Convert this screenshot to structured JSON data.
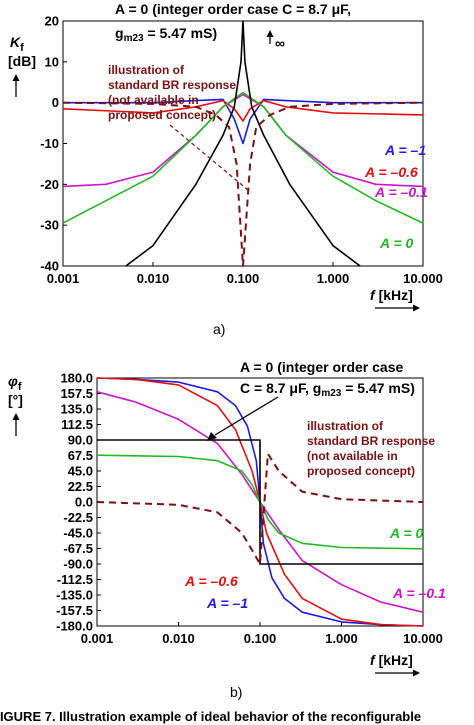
{
  "chart_data": [
    {
      "type": "line",
      "panel": "a)",
      "xscale": "log",
      "xlim": [
        0.001,
        10
      ],
      "ylim": [
        -40,
        20
      ],
      "x_ticks": [
        "0.001",
        "0.010",
        "0.100",
        "1.000",
        "10.000"
      ],
      "y_ticks": [
        "20",
        "10",
        "0",
        "-10",
        "-20",
        "-30",
        "-40"
      ],
      "xlabel_symbol": "f",
      "xlabel_unit": "[kHz]",
      "ylabel_symbol": "K",
      "ylabel_sub": "f",
      "ylabel_unit": "[dB]",
      "infinity_label": "∞",
      "header_line1": "A = 0 (integer order case C = 8.7 μF,",
      "header_line2": "g",
      "header_line2_sub": "m23",
      "header_line2_rest": " = 5.47 mS)",
      "note": [
        "illustration of",
        "standard BR response",
        "(not available in",
        "proposed concept)"
      ],
      "series": [
        {
          "name": "A = –1",
          "color": "#1a1ae6",
          "x": [
            0.001,
            0.01,
            0.03,
            0.06,
            0.08,
            0.1,
            0.12,
            0.17,
            0.3,
            1,
            10
          ],
          "y": [
            0,
            0,
            0.5,
            0.8,
            -4,
            -10,
            -4,
            0.8,
            0.5,
            0,
            0
          ]
        },
        {
          "name": "A = –0.6",
          "color": "#e60d0d",
          "x": [
            0.001,
            0.01,
            0.03,
            0.06,
            0.08,
            0.1,
            0.12,
            0.17,
            0.3,
            1,
            10
          ],
          "y": [
            -1.5,
            -2.5,
            -1,
            0.5,
            -1.5,
            -4.5,
            -1.5,
            0.5,
            -1,
            -2.5,
            -3
          ]
        },
        {
          "name": "A = –0.1",
          "color": "#cc14cc",
          "x": [
            0.001,
            0.003,
            0.01,
            0.03,
            0.06,
            0.1,
            0.17,
            0.3,
            1,
            3,
            10
          ],
          "y": [
            -20.5,
            -20,
            -17,
            -8,
            -1,
            2,
            -1,
            -8,
            -17,
            -20,
            -20.5
          ]
        },
        {
          "name": "A = 0",
          "color": "#22b822",
          "x": [
            0.001,
            0.003,
            0.01,
            0.03,
            0.06,
            0.1,
            0.17,
            0.3,
            1,
            3,
            10
          ],
          "y": [
            -29.5,
            -24,
            -18,
            -8,
            -1,
            2.5,
            -1,
            -8,
            -18,
            -24,
            -29.5
          ]
        },
        {
          "name": "",
          "color": "#000000",
          "x": [
            0.005,
            0.01,
            0.03,
            0.06,
            0.08,
            0.095,
            0.1,
            0.105,
            0.125,
            0.17,
            0.33,
            1,
            2
          ],
          "y": [
            -40,
            -35,
            -20,
            -8,
            -1,
            10,
            20,
            10,
            -1,
            -8,
            -20,
            -35,
            -40
          ]
        },
        {
          "name": "",
          "color": "#7a1010",
          "dashed": true,
          "x": [
            0.001,
            0.01,
            0.03,
            0.05,
            0.07,
            0.085,
            0.1,
            0.12,
            0.14,
            0.2,
            0.33,
            1,
            10
          ],
          "y": [
            0,
            -0.3,
            -1,
            -3,
            -6,
            -15,
            -40,
            -15,
            -6,
            -3,
            -1,
            -0.3,
            0
          ]
        }
      ],
      "series_labels": [
        "A = –1",
        "A = –0.6",
        "A = –0.1",
        "A = 0"
      ]
    },
    {
      "type": "line",
      "panel": "b)",
      "xscale": "log",
      "xlim": [
        0.001,
        10
      ],
      "ylim": [
        -180,
        180
      ],
      "x_ticks": [
        "0.001",
        "0.010",
        "0.100",
        "1.000",
        "10.000"
      ],
      "y_ticks": [
        "180.0",
        "157.5",
        "135.0",
        "112.5",
        "90.0",
        "67.5",
        "45.0",
        "22.5",
        "0.0",
        "-22.5",
        "-45.0",
        "-67.5",
        "-90.0",
        "-112.5",
        "-135.0",
        "-157.5",
        "-180.0"
      ],
      "xlabel_symbol": "f",
      "xlabel_unit": "[kHz]",
      "ylabel_symbol": "φ",
      "ylabel_sub": "f",
      "ylabel_unit": "[°]",
      "header_line1": "A = 0 (integer order case",
      "header_line2": "C = 8.7 μF, g",
      "header_line2_sub": "m23",
      "header_line2_rest": " = 5.47 mS)",
      "note": [
        "illustration of",
        "standard BR response",
        "(not available in",
        "proposed concept)"
      ],
      "series": [
        {
          "name": "A = –1",
          "color": "#1a1ae6",
          "x": [
            0.001,
            0.003,
            0.01,
            0.03,
            0.05,
            0.07,
            0.09,
            0.1,
            0.11,
            0.14,
            0.2,
            0.33,
            1,
            3,
            10
          ],
          "y": [
            180,
            178,
            174,
            160,
            140,
            110,
            60,
            0,
            -60,
            -110,
            -140,
            -160,
            -174,
            -178,
            -180
          ]
        },
        {
          "name": "A = –0.6",
          "color": "#e60d0d",
          "x": [
            0.001,
            0.003,
            0.01,
            0.03,
            0.05,
            0.08,
            0.1,
            0.12,
            0.2,
            0.33,
            1,
            3,
            10
          ],
          "y": [
            180,
            178,
            170,
            140,
            105,
            45,
            0,
            -45,
            -105,
            -140,
            -170,
            -178,
            -180
          ]
        },
        {
          "name": "A = –0.1",
          "color": "#cc14cc",
          "x": [
            0.001,
            0.003,
            0.01,
            0.03,
            0.06,
            0.1,
            0.17,
            0.33,
            1,
            3,
            10
          ],
          "y": [
            160,
            145,
            120,
            85,
            40,
            0,
            -40,
            -85,
            -120,
            -145,
            -160
          ]
        },
        {
          "name": "A = 0",
          "color": "#22b822",
          "x": [
            0.001,
            0.01,
            0.03,
            0.06,
            0.08,
            0.1,
            0.125,
            0.17,
            0.33,
            1,
            10
          ],
          "y": [
            68,
            66,
            60,
            45,
            25,
            0,
            -25,
            -45,
            -60,
            -66,
            -68
          ]
        },
        {
          "name": "",
          "color": "#000000",
          "x": [
            0.001,
            0.1,
            0.1,
            0.1,
            10
          ],
          "y": [
            90,
            90,
            0,
            -90,
            -90
          ]
        },
        {
          "name": "",
          "color": "#7a1010",
          "dashed": true,
          "x": [
            0.001,
            0.01,
            0.03,
            0.06,
            0.08,
            0.1,
            0.125,
            0.17,
            0.33,
            1,
            10
          ],
          "y": [
            0,
            -4,
            -15,
            -45,
            -70,
            -90,
            70,
            45,
            15,
            4,
            0
          ]
        }
      ],
      "series_labels": [
        "A = 0",
        "A = –0.6",
        "A = –0.1",
        "A = –1"
      ]
    }
  ],
  "captions": [
    "a)",
    "b)"
  ],
  "footer_text": "FIGURE 7.  Illustration example of ideal behavior of the reconfigurable"
}
